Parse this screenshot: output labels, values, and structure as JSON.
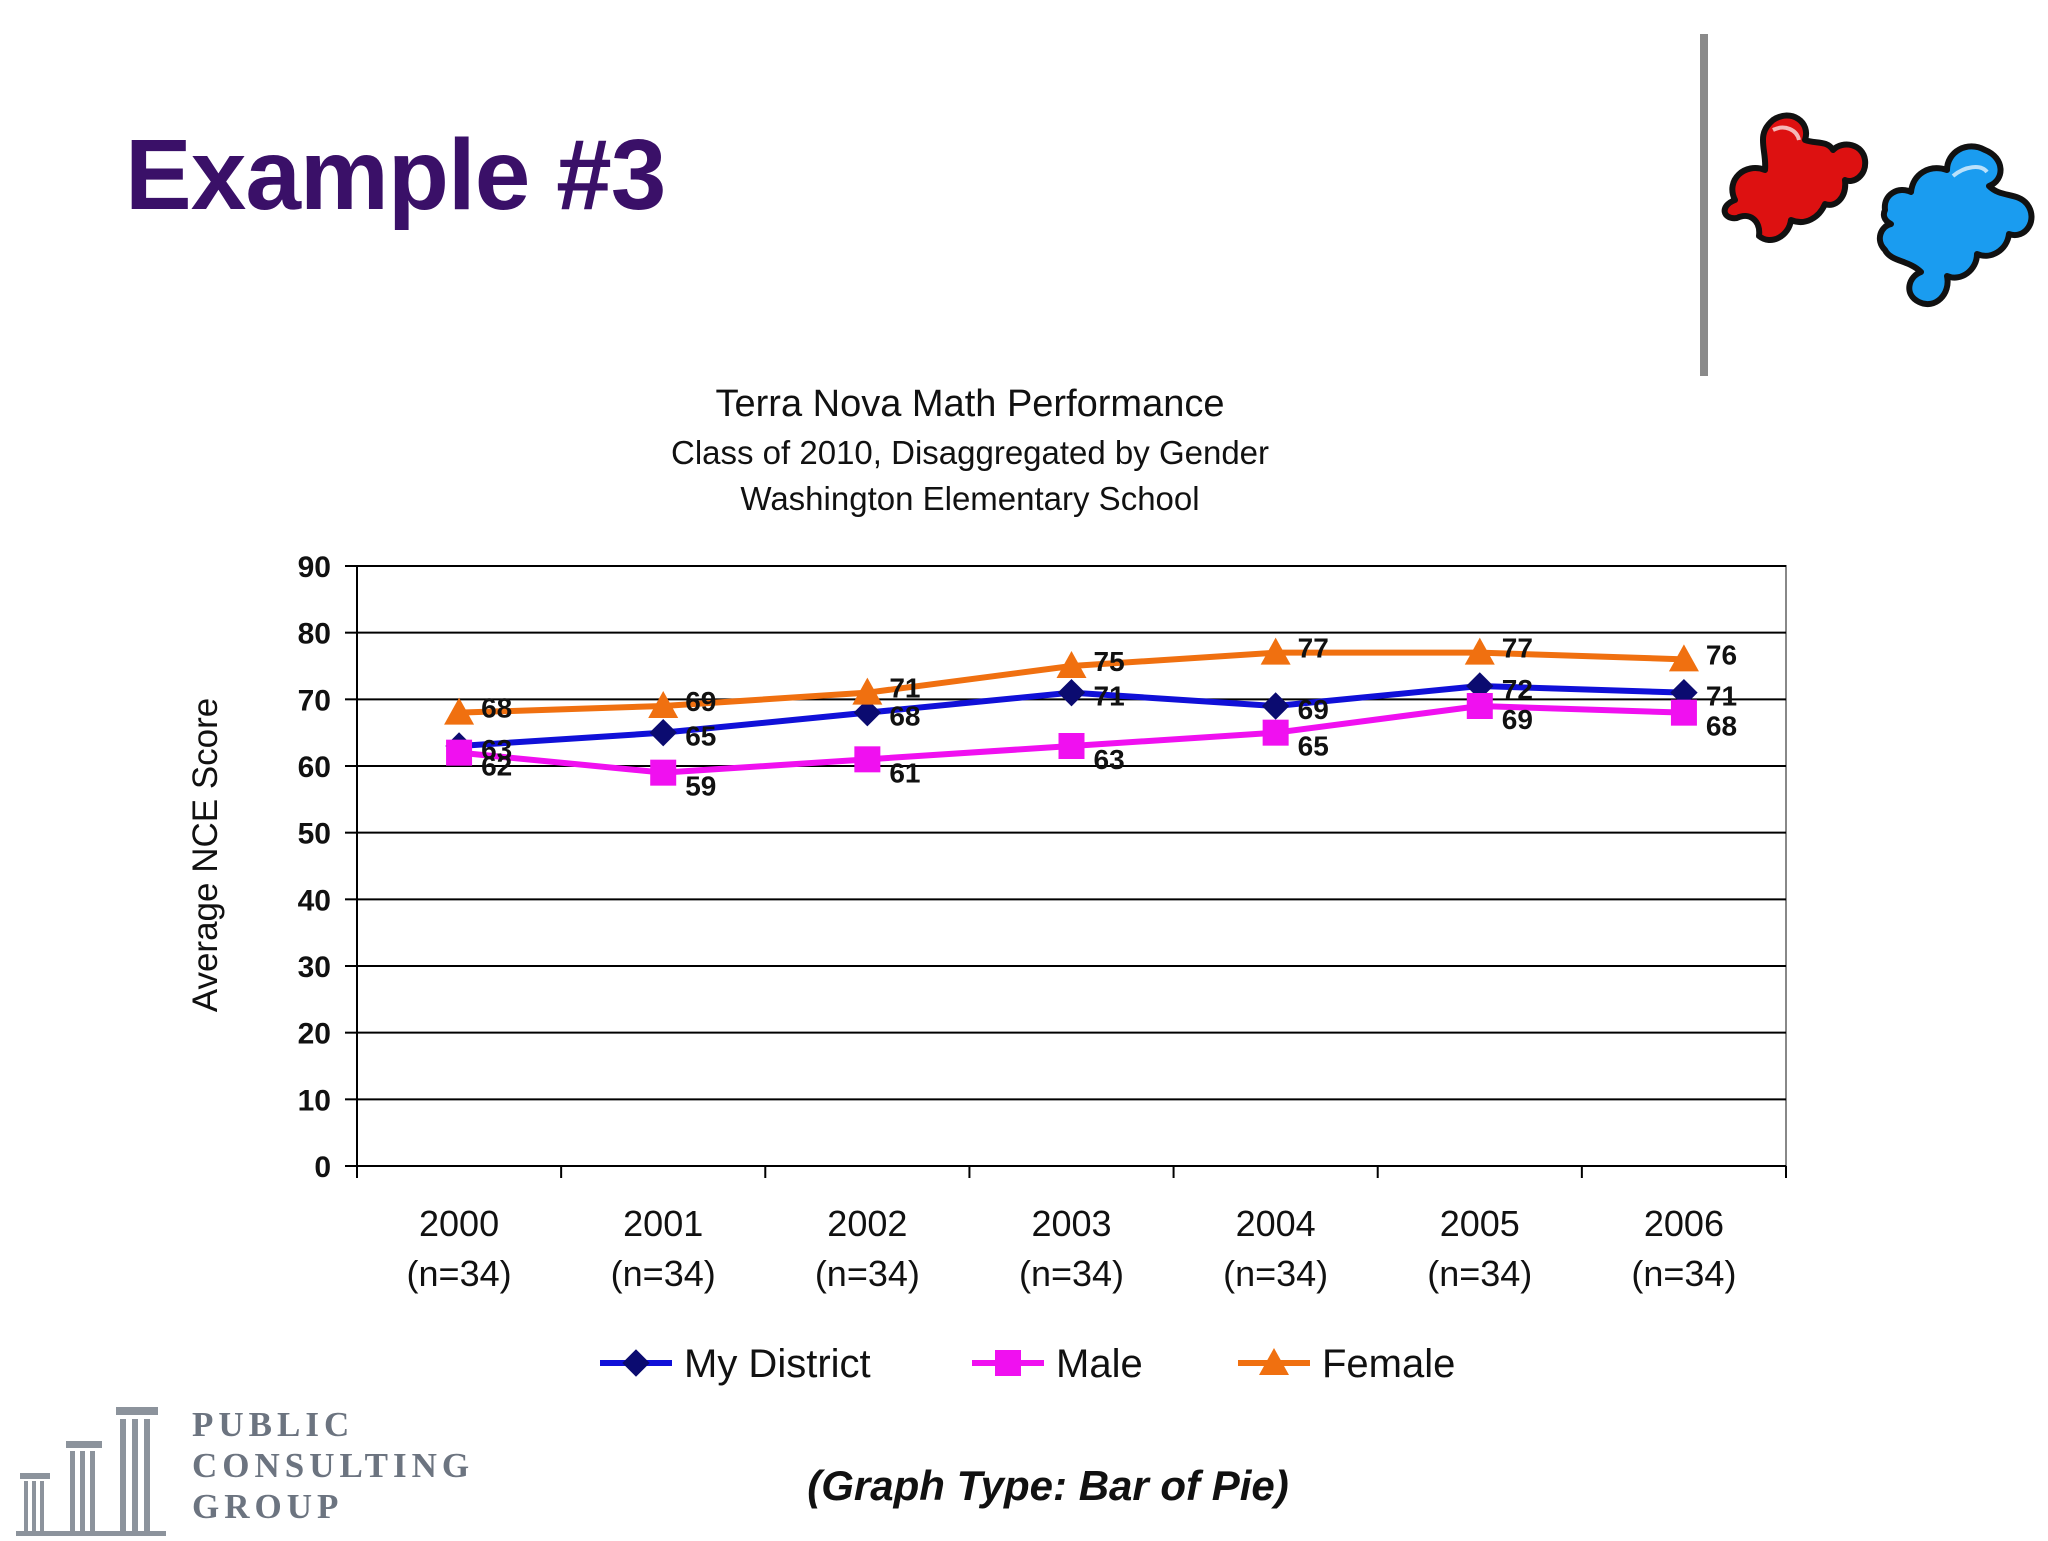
{
  "slide": {
    "title": "Example #3",
    "graph_type_note": "(Graph Type: Bar of Pie)",
    "logo": {
      "line1": "PUBLIC",
      "line2": "CONSULTING",
      "line3": "GROUP"
    }
  },
  "colors": {
    "title": "#3a1068",
    "my_district": "#1010d8",
    "male": "#f010f0",
    "female": "#f07010",
    "puzzle_red": "#dd1111",
    "puzzle_blue": "#1a9cf0"
  },
  "chart_data": {
    "type": "line",
    "title": "Terra Nova Math Performance",
    "subtitle_1": "Class of 2010, Disaggregated by Gender",
    "subtitle_2": "Washington Elementary School",
    "ylabel": "Average NCE Score",
    "xlabel": "",
    "ylim": [
      0,
      90
    ],
    "yticks": [
      0,
      10,
      20,
      30,
      40,
      50,
      60,
      70,
      80,
      90
    ],
    "grid": true,
    "legend_position": "bottom",
    "categories": [
      "2000",
      "2001",
      "2002",
      "2003",
      "2004",
      "2005",
      "2006"
    ],
    "category_sublabels": [
      "(n=34)",
      "(n=34)",
      "(n=34)",
      "(n=34)",
      "(n=34)",
      "(n=34)",
      "(n=34)"
    ],
    "series": [
      {
        "name": "My District",
        "marker": "diamond",
        "color": "#1010d8",
        "values": [
          63,
          65,
          68,
          71,
          69,
          72,
          71
        ]
      },
      {
        "name": "Male",
        "marker": "square",
        "color": "#f010f0",
        "values": [
          62,
          59,
          61,
          63,
          65,
          69,
          68
        ]
      },
      {
        "name": "Female",
        "marker": "triangle",
        "color": "#f07010",
        "values": [
          68,
          69,
          71,
          75,
          77,
          77,
          76
        ]
      }
    ]
  }
}
